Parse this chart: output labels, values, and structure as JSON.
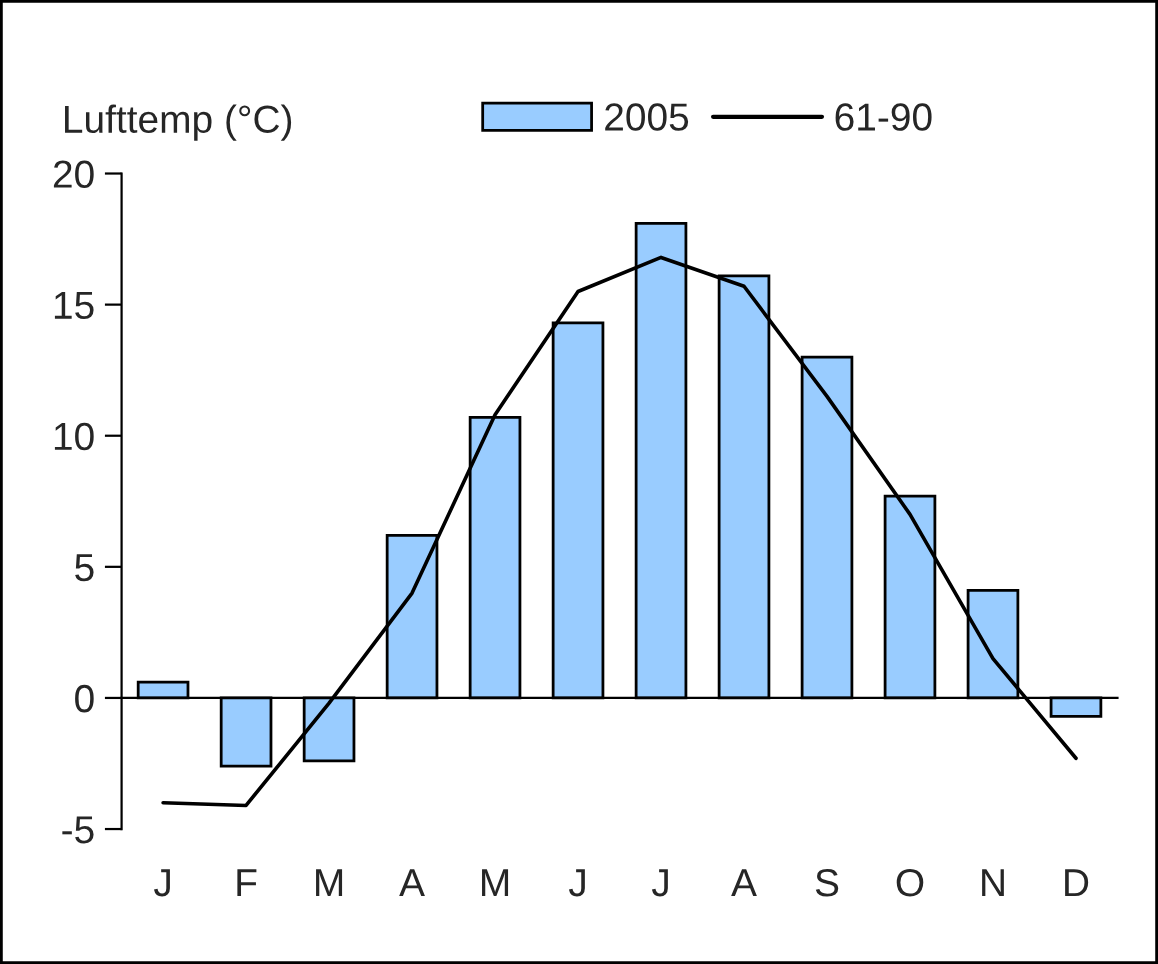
{
  "chart_data": {
    "type": "bar",
    "ylabel": "Lufttemp (°C)",
    "categories": [
      "J",
      "F",
      "M",
      "A",
      "M",
      "J",
      "J",
      "A",
      "S",
      "O",
      "N",
      "D"
    ],
    "series": [
      {
        "name": "2005",
        "color": "#99ccff",
        "values": [
          0.6,
          -2.6,
          -2.4,
          6.2,
          10.7,
          14.3,
          18.1,
          16.1,
          13.0,
          7.7,
          4.1,
          -0.7
        ]
      },
      {
        "name": "61-90",
        "type": "line",
        "color": "#000000",
        "values": [
          -4.0,
          -4.1,
          -0.2,
          4.0,
          10.8,
          15.5,
          16.8,
          15.7,
          11.5,
          7.0,
          1.5,
          -2.3
        ]
      }
    ],
    "ylim": [
      -5,
      20
    ],
    "yticks": [
      -5,
      0,
      5,
      10,
      15,
      20
    ],
    "legend": "top right",
    "marker": "none",
    "line_style": "solid"
  }
}
